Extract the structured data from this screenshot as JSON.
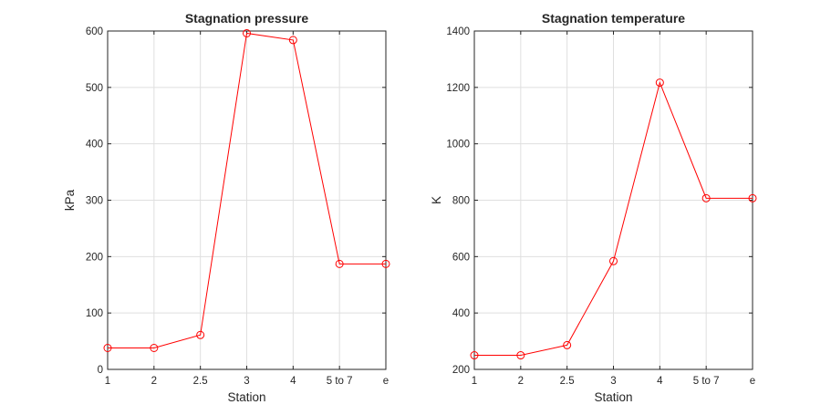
{
  "chart_data": [
    {
      "type": "line",
      "title": "Stagnation pressure",
      "xlabel": "Station",
      "ylabel": "kPa",
      "categories": [
        "1",
        "2",
        "2.5",
        "3",
        "4",
        "5 to 7",
        "e"
      ],
      "series": [
        {
          "values": [
            38,
            38,
            61,
            596,
            584,
            187,
            187
          ],
          "color": "#ff0000",
          "marker": "circle"
        }
      ],
      "ylim": [
        0,
        600
      ],
      "yticks": [
        0,
        100,
        200,
        300,
        400,
        500,
        600
      ],
      "grid": true
    },
    {
      "type": "line",
      "title": "Stagnation temperature",
      "xlabel": "Station",
      "ylabel": "K",
      "categories": [
        "1",
        "2",
        "2.5",
        "3",
        "4",
        "5 to 7",
        "e"
      ],
      "series": [
        {
          "values": [
            250,
            250,
            286,
            584,
            1217,
            807,
            807
          ],
          "color": "#ff0000",
          "marker": "circle"
        }
      ],
      "ylim": [
        200,
        1400
      ],
      "yticks": [
        200,
        400,
        600,
        800,
        1000,
        1200,
        1400
      ],
      "grid": true
    }
  ]
}
